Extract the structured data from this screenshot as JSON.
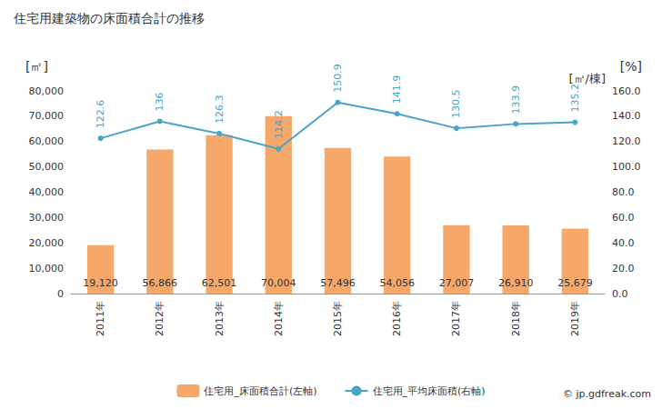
{
  "chart_data": {
    "type": "bar",
    "title": "住宅用建築物の床面積合計の推移",
    "y_label": "[㎡]",
    "y2_label": "[㎡/棟]",
    "y2_unit": "[%]",
    "annotation": "© jp.gdfreak.com",
    "categories": [
      "2011年",
      "2012年",
      "2013年",
      "2014年",
      "2015年",
      "2016年",
      "2017年",
      "2018年",
      "2019年"
    ],
    "series": [
      {
        "name": "住宅用_床面積合計(左軸)",
        "type": "bar",
        "color": "#f5a86a",
        "values": [
          19120,
          56866,
          62501,
          70004,
          57496,
          54056,
          27007,
          26910,
          25679
        ],
        "value_labels": [
          "19,120",
          "56,866",
          "62,501",
          "70,004",
          "57,496",
          "54,056",
          "27,007",
          "26,910",
          "25,679"
        ]
      },
      {
        "name": "住宅用_平均床面積(右軸)",
        "type": "line",
        "axis": "y2",
        "color": "#4aa3c8",
        "marker": "circle",
        "values": [
          122.6,
          136,
          126.3,
          114.2,
          150.9,
          141.9,
          130.5,
          133.9,
          135.2
        ]
      }
    ],
    "ylim": [
      0,
      80000
    ],
    "yticks": [
      0,
      {
        "value": 10000,
        "label": "10,000"
      },
      {
        "value": 20000,
        "label": "20,000"
      },
      {
        "value": 30000,
        "label": "30,000"
      },
      {
        "value": 40000,
        "label": "40,000"
      },
      {
        "value": 50000,
        "label": "50,000"
      },
      {
        "value": 60000,
        "label": "60,000"
      },
      {
        "value": 70000,
        "label": "70,000"
      },
      {
        "value": 80000,
        "label": "80,000"
      }
    ],
    "y2lim": [
      0,
      160
    ],
    "y2ticks": [
      {
        "value": 0,
        "label": "0.0"
      },
      {
        "value": 20,
        "label": "20.0"
      },
      {
        "value": 40,
        "label": "40.0"
      },
      {
        "value": 60,
        "label": "60.0"
      },
      {
        "value": 80,
        "label": "80.0"
      },
      {
        "value": 100,
        "label": "100.0"
      },
      {
        "value": 120,
        "label": "120.0"
      },
      {
        "value": 140,
        "label": "140.0"
      },
      {
        "value": 160,
        "label": "160.0"
      }
    ],
    "data_labels": true,
    "grid": false,
    "legend": "bottom"
  }
}
